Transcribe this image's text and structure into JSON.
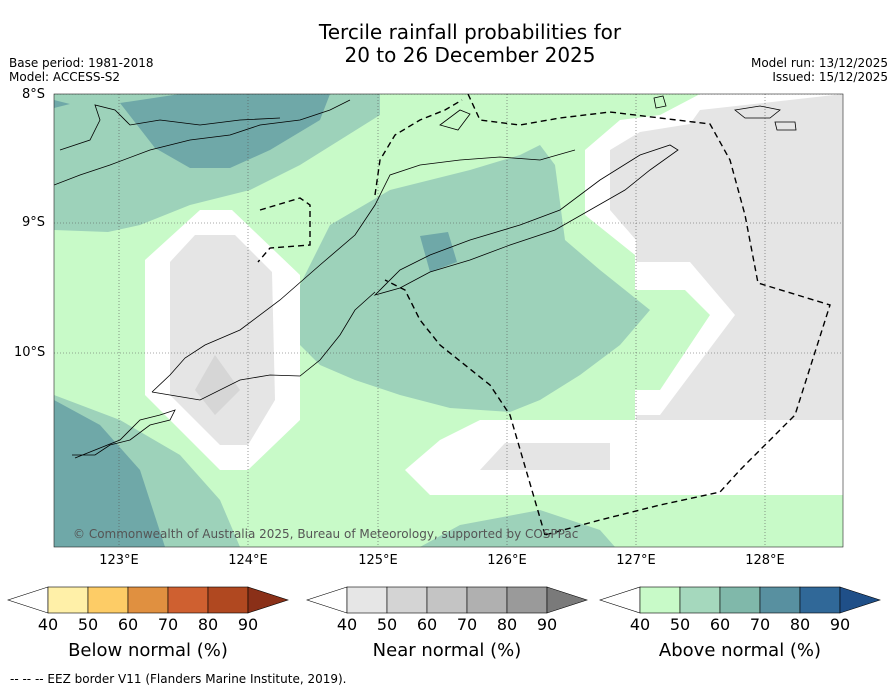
{
  "header": {
    "title_line1": "Tercile rainfall probabilities for",
    "title_line2": "20 to 26 December 2025",
    "base_period": "Base period: 1981-2018",
    "model": "Model: ACCESS-S2",
    "model_run": "Model run: 13/12/2025",
    "issued": "Issued: 15/12/2025"
  },
  "map": {
    "lat_labels": [
      "8°S",
      "9°S",
      "10°S"
    ],
    "lon_labels": [
      "123°E",
      "124°E",
      "125°E",
      "126°E",
      "127°E",
      "128°E"
    ],
    "copyright": "© Commonwealth of Australia 2025, Bureau of Meteorology, supported by COSPPac",
    "region_colors": {
      "above_40": "#c8fac8",
      "above_50": "#9dd2ba",
      "above_60": "#6fa8a8",
      "near_40": "#e5e5e5",
      "near_50": "#d6d6d6"
    }
  },
  "colorbars": [
    {
      "title": "Below normal (%)",
      "ticks": [
        "40",
        "50",
        "60",
        "70",
        "80",
        "90"
      ],
      "colors": [
        "#ffffff",
        "#fff0a8",
        "#fdcc66",
        "#e09040",
        "#cf6030",
        "#b04820",
        "#8a3018"
      ]
    },
    {
      "title": "Near normal (%)",
      "ticks": [
        "40",
        "50",
        "60",
        "70",
        "80",
        "90"
      ],
      "colors": [
        "#ffffff",
        "#e6e6e6",
        "#d4d4d4",
        "#c4c4c4",
        "#b0b0b0",
        "#9a9a9a",
        "#7a7a7a"
      ]
    },
    {
      "title": "Above normal (%)",
      "ticks": [
        "40",
        "50",
        "60",
        "70",
        "80",
        "90"
      ],
      "colors": [
        "#ffffff",
        "#c8fac8",
        "#a5d8bd",
        "#80b8aa",
        "#5890a0",
        "#306898",
        "#1f4f88"
      ]
    }
  ],
  "footer": "--  --  -- EEZ border V11 (Flanders Marine Institute, 2019)."
}
